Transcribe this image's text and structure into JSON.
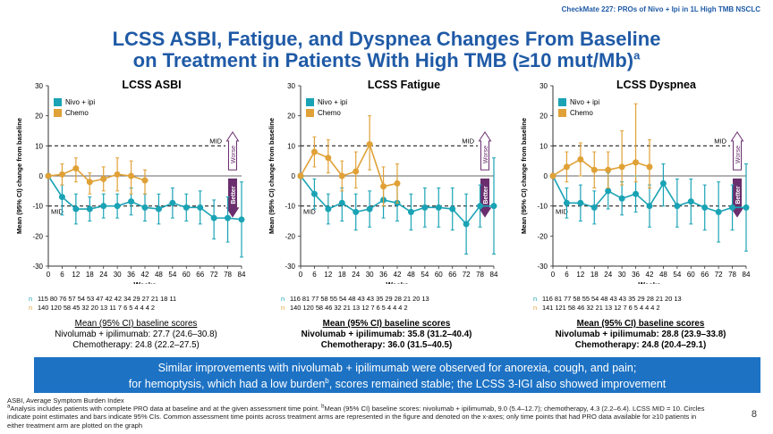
{
  "header": {
    "tag": "CheckMate 227: PROs of Nivo + Ipi in 1L High TMB NSCLC"
  },
  "title": {
    "line1": "LCSS ASBI, Fatigue, and Dyspnea Changes From Baseline",
    "line2": "on Treatment in Patients With High TMB (≥10 mut/Mb)",
    "sup": "a"
  },
  "colors": {
    "nivo": "#1aa3b5",
    "chemo": "#e0a137",
    "title": "#1f5aa6",
    "arrow": "#6a2e6e",
    "banner": "#1d72c4"
  },
  "shared_axis": {
    "ylabel": "Mean (95% CI) change from baseline",
    "xlabel": "Weeks",
    "yticks": [
      "30",
      "20",
      "10",
      "0",
      "-10",
      "-20",
      "-30"
    ],
    "xticks": [
      "0",
      "6",
      "12",
      "18",
      "24",
      "30",
      "36",
      "42",
      "48",
      "54",
      "60",
      "66",
      "72",
      "78",
      "84"
    ],
    "mid_label": "MID",
    "worse_label": "Worse",
    "better_label": "Better"
  },
  "chart_data": [
    {
      "type": "line",
      "title": "LCSS ASBI",
      "xlabel": "Weeks",
      "ylabel": "Mean (95% CI) change from baseline",
      "xlim": [
        0,
        84
      ],
      "ylim": [
        -30,
        30
      ],
      "mid": [
        10,
        -10
      ],
      "series": [
        {
          "name": "Nivo + ipi",
          "x": [
            0,
            6,
            12,
            18,
            24,
            30,
            36,
            42,
            48,
            54,
            60,
            66,
            72,
            78,
            84
          ],
          "y": [
            0,
            -7,
            -11,
            -11,
            -10,
            -10,
            -8.5,
            -10.5,
            -11,
            -9,
            -10.5,
            -10.5,
            -14,
            -14,
            -14.5
          ],
          "lo": [
            0,
            -13,
            -16,
            -15,
            -14,
            -14,
            -13,
            -15,
            -16,
            -14,
            -15,
            -16,
            -21,
            -22,
            -27
          ],
          "hi": [
            0,
            -3,
            -6,
            -7,
            -6,
            -6,
            -4,
            -6,
            -6,
            -4,
            -6,
            -5,
            -8,
            -7,
            -2
          ]
        },
        {
          "name": "Chemo",
          "x": [
            0,
            6,
            12,
            18,
            24,
            30,
            36,
            42
          ],
          "y": [
            0,
            0.5,
            2.5,
            -2,
            -1,
            0.5,
            0,
            -1.5
          ],
          "lo": [
            0,
            -3,
            -2,
            -6,
            -5,
            -5,
            -6,
            -6
          ],
          "hi": [
            0,
            4,
            6,
            1,
            3,
            6,
            5,
            2
          ]
        }
      ],
      "n_at_risk": {
        "nivo": [
          "115",
          "80",
          "76",
          "57",
          "54",
          "53",
          "47",
          "42",
          "42",
          "34",
          "29",
          "27",
          "21",
          "18",
          "11"
        ],
        "chemo": [
          "140",
          "120",
          "58",
          "45",
          "32",
          "20",
          "13",
          "11",
          "7",
          "6",
          "5",
          "4",
          "4",
          "4",
          "2"
        ]
      },
      "baseline": {
        "heading": "Mean (95% CI) baseline scores",
        "nivo": "Nivolumab + ipilimumab: 27.7 (24.6–30.8)",
        "chemo": "Chemotherapy: 24.8 (22.2–27.5)"
      }
    },
    {
      "type": "line",
      "title": "LCSS Fatigue",
      "xlabel": "Weeks",
      "ylabel": "Mean (95% CI) change from baseline",
      "xlim": [
        0,
        84
      ],
      "ylim": [
        -30,
        30
      ],
      "mid": [
        10,
        -10
      ],
      "series": [
        {
          "name": "Nivo + ipi",
          "x": [
            0,
            6,
            12,
            18,
            24,
            30,
            36,
            42,
            48,
            54,
            60,
            66,
            72,
            78,
            84
          ],
          "y": [
            0,
            -6,
            -11,
            -9,
            -12,
            -11,
            -8,
            -9,
            -12,
            -10.5,
            -10.5,
            -11,
            -16,
            -10,
            -10
          ],
          "lo": [
            0,
            -11,
            -16,
            -15,
            -18,
            -17,
            -14,
            -15,
            -18,
            -17,
            -17,
            -18,
            -26,
            -17,
            -26
          ],
          "hi": [
            0,
            -1,
            -6,
            -4,
            -6,
            -5,
            -3,
            -3,
            -6,
            -4,
            -4,
            -4,
            -6,
            -3,
            6
          ]
        },
        {
          "name": "Chemo",
          "x": [
            0,
            6,
            12,
            18,
            24,
            30,
            36,
            42
          ],
          "y": [
            0,
            8,
            6,
            0,
            1.5,
            10.5,
            -3.5,
            -2.5
          ],
          "lo": [
            0,
            3,
            1,
            -5,
            -4,
            2,
            -10,
            -9
          ],
          "hi": [
            0,
            13,
            12,
            5,
            8,
            20,
            3,
            4
          ]
        }
      ],
      "n_at_risk": {
        "nivo": [
          "116",
          "81",
          "77",
          "58",
          "55",
          "54",
          "48",
          "43",
          "43",
          "35",
          "29",
          "28",
          "21",
          "20",
          "13"
        ],
        "chemo": [
          "140",
          "120",
          "58",
          "46",
          "32",
          "21",
          "13",
          "12",
          "7",
          "6",
          "5",
          "4",
          "4",
          "4",
          "2"
        ]
      },
      "baseline": {
        "heading": "Mean (95% CI) baseline scores",
        "nivo": "Nivolumab + ipilimumab: 35.8 (31.2–40.4)",
        "chemo": "Chemotherapy: 36.0 (31.5–40.5)"
      }
    },
    {
      "type": "line",
      "title": "LCSS Dyspnea",
      "xlabel": "Weeks",
      "ylabel": "Mean (95% CI) change from baseline",
      "xlim": [
        0,
        84
      ],
      "ylim": [
        -30,
        30
      ],
      "mid": [
        10,
        -10
      ],
      "series": [
        {
          "name": "Nivo + ipi",
          "x": [
            0,
            6,
            12,
            18,
            24,
            30,
            36,
            42,
            48,
            54,
            60,
            66,
            72,
            78,
            84
          ],
          "y": [
            0,
            -9,
            -9,
            -10.5,
            -5,
            -7.5,
            -6,
            -10,
            -2.5,
            -10,
            -8.5,
            -10.5,
            -12,
            -10.5,
            -10.5
          ],
          "lo": [
            0,
            -14,
            -15,
            -16,
            -11,
            -13,
            -12,
            -17,
            -10,
            -17,
            -16,
            -18,
            -22,
            -18,
            -25
          ],
          "hi": [
            0,
            -4,
            -3,
            -5,
            1,
            -2,
            0,
            -3,
            4,
            -1,
            -1,
            -3,
            -2,
            -3,
            4
          ]
        },
        {
          "name": "Chemo",
          "x": [
            0,
            6,
            12,
            18,
            24,
            30,
            36,
            42
          ],
          "y": [
            0,
            3,
            5.5,
            2,
            2,
            3,
            4.5,
            3
          ],
          "lo": [
            0,
            -2,
            0,
            -4,
            -4,
            -3,
            -2,
            -4
          ],
          "hi": [
            0,
            8,
            11,
            8,
            8,
            15,
            24,
            12
          ]
        }
      ],
      "n_at_risk": {
        "nivo": [
          "116",
          "81",
          "77",
          "58",
          "55",
          "54",
          "48",
          "43",
          "43",
          "35",
          "29",
          "28",
          "21",
          "20",
          "13"
        ],
        "chemo": [
          "141",
          "121",
          "58",
          "46",
          "32",
          "21",
          "13",
          "12",
          "7",
          "6",
          "5",
          "4",
          "4",
          "4",
          "2"
        ]
      },
      "baseline": {
        "heading": "Mean (95% CI) baseline scores",
        "nivo": "Nivolumab + ipilimumab: 28.8 (23.9–33.8)",
        "chemo": "Chemotherapy: 24.8 (20.4–29.1)"
      }
    }
  ],
  "banner": {
    "line1": "Similar improvements with nivolumab + ipilimumab were observed for anorexia, cough, and pain;",
    "line2a": "for hemoptysis, which had a low burden",
    "line2sup": "b",
    "line2b": ", scores remained stable; the LCSS 3-IGI also showed improvement"
  },
  "footnotes": {
    "abbr": "ASBI, Average Symptom Burden Index",
    "a_sup": "a",
    "a_text": "Analysis includes patients with complete PRO data at baseline and at the given assessment time point. ",
    "b_sup": "b",
    "b_text": "Mean (95% CI) baseline scores: nivolumab + ipilimumab, 9.0 (5.4–12.7); chemotherapy, 4.3 (2.2–6.4). LCSS MID = 10. Circles indicate point estimates and bars indicate 95% CIs. Common assessment time points across treatment arms are represented in the figure and denoted on the x-axes; only time points that had PRO data available for ≥10 patients in either treatment arm are plotted on the graph"
  },
  "page_number": "8"
}
